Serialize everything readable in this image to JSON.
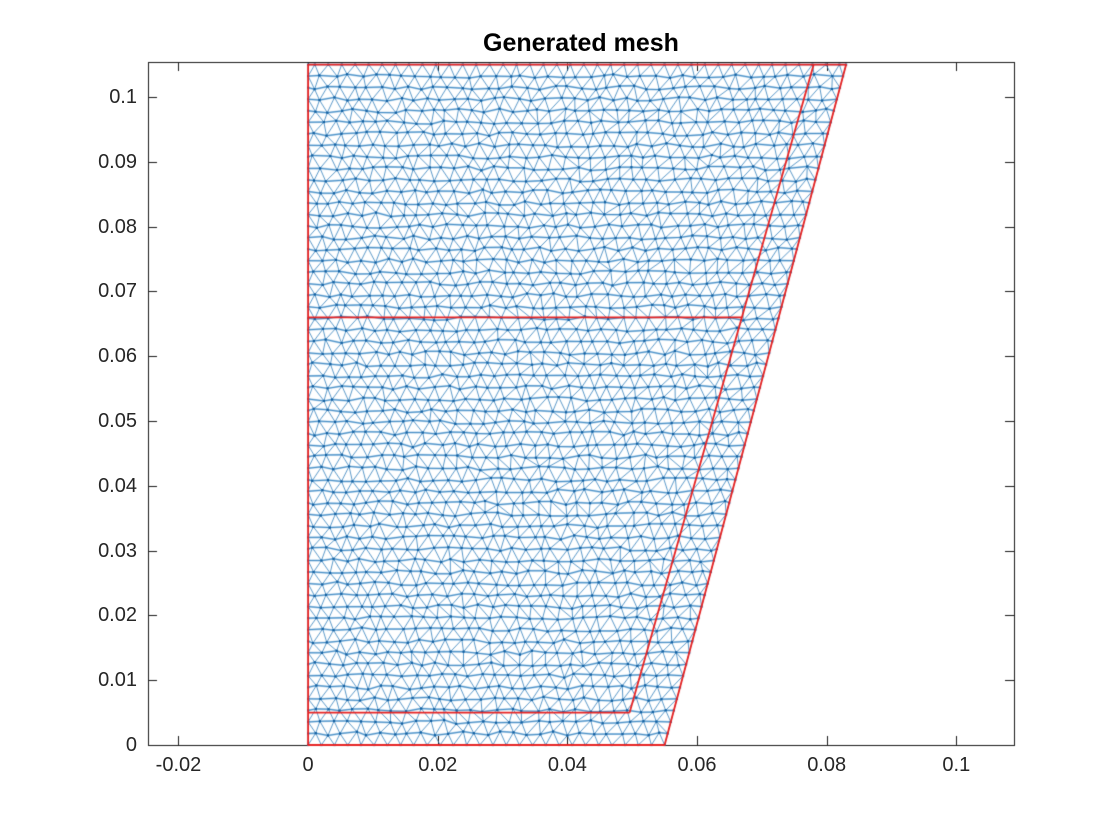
{
  "chart_data": {
    "type": "mesh",
    "title": "Generated mesh",
    "xlabel": "",
    "ylabel": "",
    "xlim": [
      -0.0247,
      0.1089
    ],
    "ylim": [
      0,
      0.1054
    ],
    "xticks": [
      -0.02,
      0,
      0.02,
      0.04,
      0.06,
      0.08,
      0.1
    ],
    "xtick_labels": [
      "-0.02",
      "0",
      "0.02",
      "0.04",
      "0.06",
      "0.08",
      "0.1"
    ],
    "yticks": [
      0,
      0.01,
      0.02,
      0.03,
      0.04,
      0.05,
      0.06,
      0.07,
      0.08,
      0.09,
      0.1
    ],
    "ytick_labels": [
      "0",
      "0.01",
      "0.02",
      "0.03",
      "0.04",
      "0.05",
      "0.06",
      "0.07",
      "0.08",
      "0.09",
      "0.1"
    ],
    "grid": false,
    "legend": "none",
    "axis_color": "#1a1a1a",
    "tick_label_color": "#262626",
    "title_color": "#000000",
    "mesh": {
      "style": "triangular",
      "edge_color": "#2779b8",
      "edge_highlight_color": "#9ec8e8",
      "node_color": "#135fa0",
      "approx_element_size": 0.00205,
      "approx_row_height": 0.00178
    },
    "boundary": {
      "color": "#e62222",
      "outer_polygon": [
        [
          0,
          0
        ],
        [
          0.055,
          0
        ],
        [
          0.083,
          0.105
        ],
        [
          0,
          0.105
        ]
      ],
      "inner_segments": [
        {
          "from": [
            0.0496,
            0.005
          ],
          "to": [
            0.078,
            0.105
          ]
        },
        {
          "from": [
            0,
            0.066
          ],
          "to": [
            0.0669,
            0.066
          ]
        },
        {
          "from": [
            0,
            0.005
          ],
          "to": [
            0.0496,
            0.005
          ]
        }
      ]
    }
  }
}
